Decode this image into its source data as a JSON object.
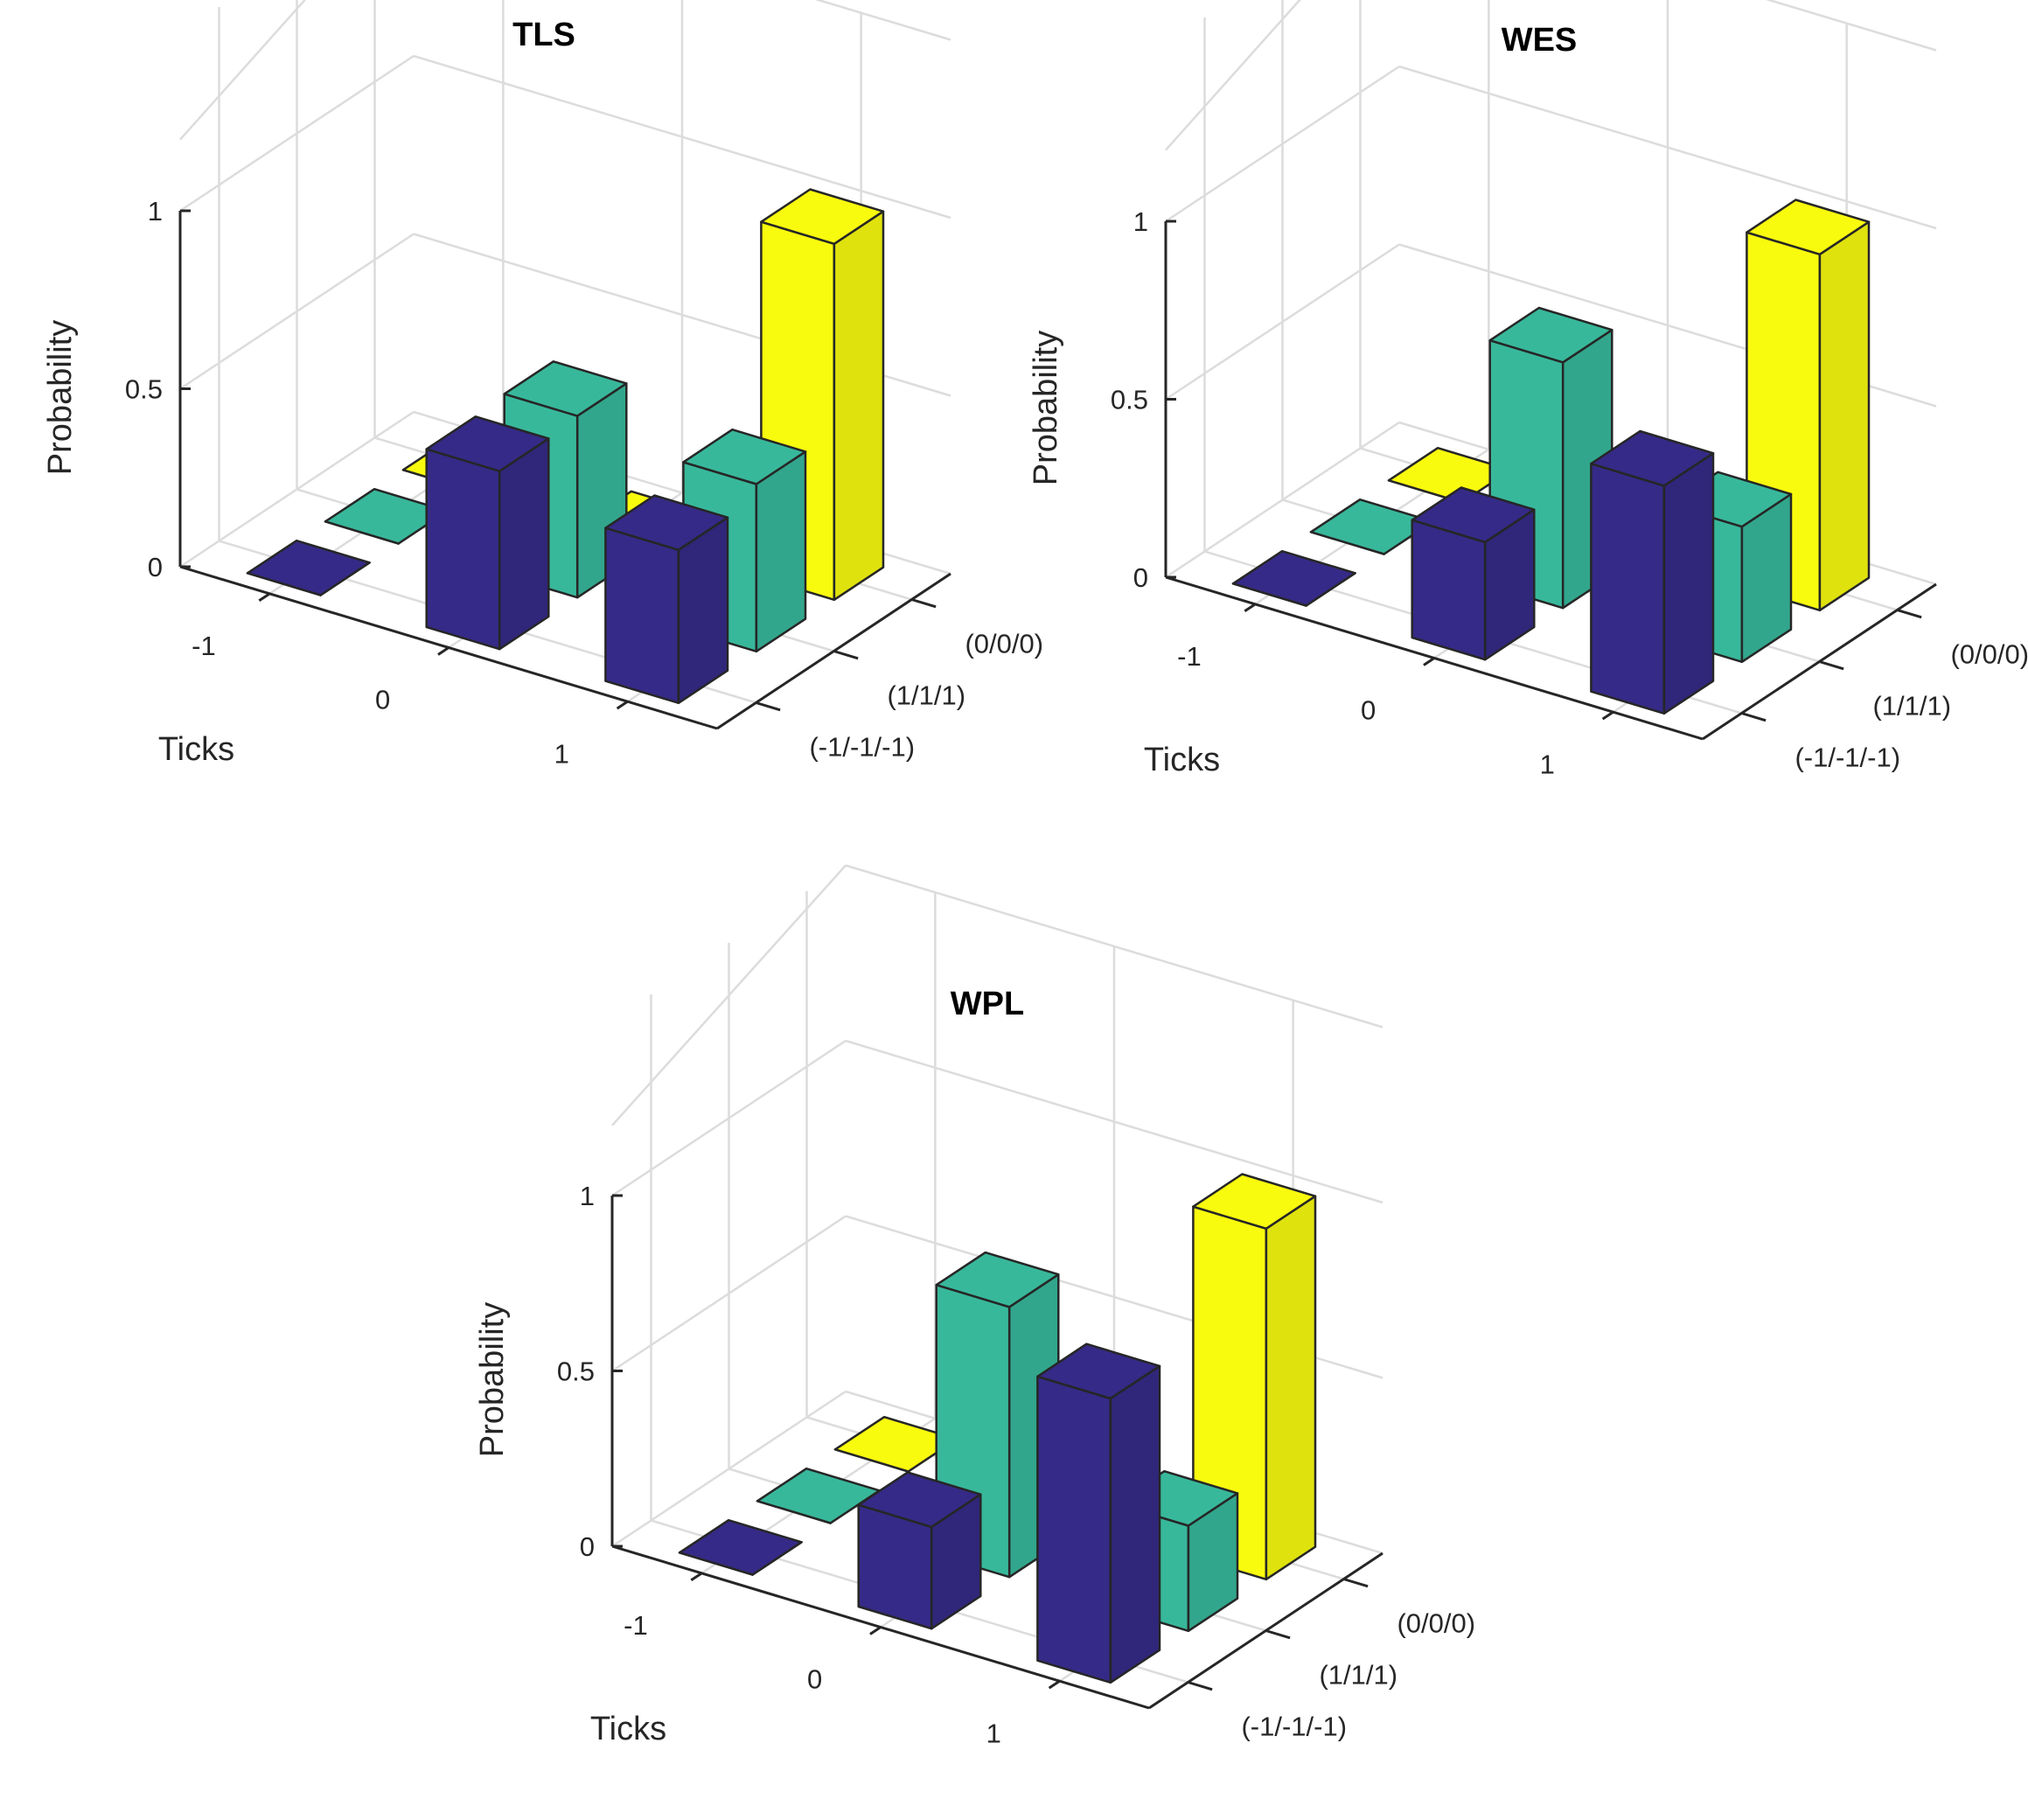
{
  "chart_data": [
    {
      "type": "bar3d",
      "title": "TLS",
      "xlabel": "Ticks",
      "ylabel": "",
      "zlabel": "Probability",
      "x_categories": [
        "-1",
        "0",
        "1"
      ],
      "y_categories": [
        "(-1/-1/-1)",
        "(1/1/1)",
        "(0/0/0)"
      ],
      "zlim": [
        0,
        1
      ],
      "z_ticks": [
        "0",
        "0.5",
        "1"
      ],
      "series": [
        {
          "name": "(-1/-1/-1)",
          "color": "#352a87",
          "values": [
            0.0,
            0.5,
            0.43
          ]
        },
        {
          "name": "(1/1/1)",
          "color": "#38b89b",
          "values": [
            0.0,
            0.51,
            0.47
          ]
        },
        {
          "name": "(0/0/0)",
          "color": "#f9fb0e",
          "values": [
            0.0,
            0.0,
            1.0
          ]
        }
      ]
    },
    {
      "type": "bar3d",
      "title": "WES",
      "xlabel": "Ticks",
      "ylabel": "",
      "zlabel": "Probability",
      "x_categories": [
        "-1",
        "0",
        "1"
      ],
      "y_categories": [
        "(-1/-1/-1)",
        "(1/1/1)",
        "(0/0/0)"
      ],
      "zlim": [
        0,
        1
      ],
      "z_ticks": [
        "0",
        "0.5",
        "1"
      ],
      "series": [
        {
          "name": "(-1/-1/-1)",
          "color": "#352a87",
          "values": [
            0.0,
            0.33,
            0.64
          ]
        },
        {
          "name": "(1/1/1)",
          "color": "#38b89b",
          "values": [
            0.0,
            0.69,
            0.38
          ]
        },
        {
          "name": "(0/0/0)",
          "color": "#f9fb0e",
          "values": [
            0.0,
            0.05,
            1.0
          ]
        }
      ]
    },
    {
      "type": "bar3d",
      "title": "WPL",
      "xlabel": "Ticks",
      "ylabel": "",
      "zlabel": "Probability",
      "x_categories": [
        "-1",
        "0",
        "1"
      ],
      "y_categories": [
        "(-1/-1/-1)",
        "(1/1/1)",
        "(0/0/0)"
      ],
      "zlim": [
        0,
        1
      ],
      "z_ticks": [
        "0",
        "0.5",
        "1"
      ],
      "series": [
        {
          "name": "(-1/-1/-1)",
          "color": "#352a87",
          "values": [
            0.0,
            0.29,
            0.81
          ]
        },
        {
          "name": "(1/1/1)",
          "color": "#38b89b",
          "values": [
            0.0,
            0.77,
            0.3
          ]
        },
        {
          "name": "(0/0/0)",
          "color": "#f9fb0e",
          "values": [
            0.0,
            0.05,
            1.0
          ]
        }
      ]
    }
  ]
}
